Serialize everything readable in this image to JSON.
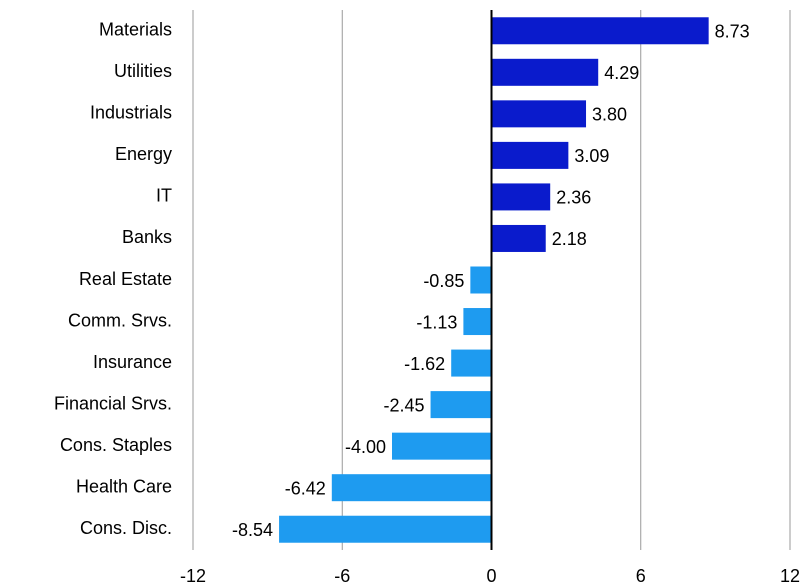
{
  "chart_data": {
    "type": "bar",
    "orientation": "horizontal",
    "categories": [
      "Materials",
      "Utilities",
      "Industrials",
      "Energy",
      "IT",
      "Banks",
      "Real Estate",
      "Comm. Srvs.",
      "Insurance",
      "Financial Srvs.",
      "Cons. Staples",
      "Health Care",
      "Cons. Disc."
    ],
    "values": [
      8.73,
      4.29,
      3.8,
      3.09,
      2.36,
      2.18,
      -0.85,
      -1.13,
      -1.62,
      -2.45,
      -4.0,
      -6.42,
      -8.54
    ],
    "value_labels": [
      "8.73",
      "4.29",
      "3.80",
      "3.09",
      "2.36",
      "2.18",
      "-0.85",
      "-1.13",
      "-1.62",
      "-2.45",
      "-4.00",
      "-6.42",
      "-8.54"
    ],
    "color": "#0a1bcc",
    "negative_color": "#1e9bf0",
    "xlim": [
      -12,
      12
    ],
    "xticks": [
      -12,
      -6,
      0,
      6,
      12
    ],
    "grid": true
  }
}
